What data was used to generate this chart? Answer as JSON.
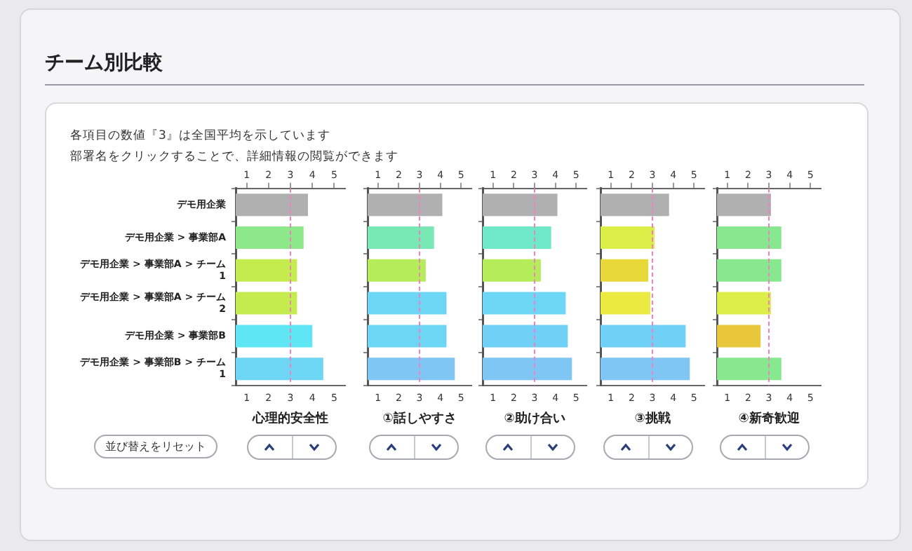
{
  "chart_data": [
    {
      "type": "bar",
      "orientation": "horizontal",
      "title": "チーム別比較",
      "annotations": [
        "各項目の数値『3』は全国平均を示しています",
        "部署名をクリックすることで、詳細情報の閲覧ができます",
        "並び替えをリセット"
      ],
      "xlabel": "心理的安全性",
      "categories": [
        "デモ用企業",
        "デモ用企業 > 事業部A",
        "デモ用企業 > 事業部A > チーム 1",
        "デモ用企業 > 事業部A > チーム 2",
        "デモ用企業 > 事業部B",
        "デモ用企業 > 事業部B > チーム 1"
      ],
      "values": [
        3.8,
        3.6,
        3.3,
        3.3,
        4.0,
        4.5
      ],
      "colors": [
        "#b0b0b0",
        "#8de88a",
        "#c5ec4f",
        "#c5ec4f",
        "#5fe6f5",
        "#6dd6f5"
      ],
      "xlim": [
        0.5,
        5.5
      ],
      "xticks": [
        1,
        2,
        3,
        4,
        5
      ],
      "x2lim": [
        0.5,
        5.5
      ],
      "x2ticks": [
        1,
        2,
        3,
        4,
        5
      ],
      "ref_lines": [
        {
          "axis": "x",
          "value": 3,
          "color": "#f080c0",
          "line_style": "dashed"
        }
      ],
      "grid": false,
      "legend": false
    },
    {
      "type": "bar",
      "orientation": "horizontal",
      "xlabel": "①話しやすさ",
      "categories": [
        null,
        null,
        null,
        null,
        null,
        null
      ],
      "values": [
        4.1,
        3.7,
        3.3,
        4.3,
        4.3,
        4.7
      ],
      "colors": [
        "#b0b0b0",
        "#78e8b4",
        "#b5ec5a",
        "#6dd6f5",
        "#6dd6f5",
        "#80c6f5"
      ],
      "xlim": [
        0.5,
        5.5
      ],
      "xticks": [
        1,
        2,
        3,
        4,
        5
      ],
      "x2lim": [
        0.5,
        5.5
      ],
      "x2ticks": [
        1,
        2,
        3,
        4,
        5
      ],
      "ref_lines": [
        {
          "axis": "x",
          "value": 3,
          "color": "#f080c0",
          "line_style": "dashed"
        }
      ],
      "grid": false,
      "legend": false,
      "tick_labels": "x"
    },
    {
      "type": "bar",
      "orientation": "horizontal",
      "xlabel": "②助け合い",
      "categories": [
        null,
        null,
        null,
        null,
        null,
        null
      ],
      "values": [
        4.1,
        3.8,
        3.3,
        4.5,
        4.6,
        4.8
      ],
      "colors": [
        "#b0b0b0",
        "#6fe8c8",
        "#b5ec5a",
        "#6dd6f5",
        "#70d0f5",
        "#80c6f5"
      ],
      "xlim": [
        0.5,
        5.5
      ],
      "xticks": [
        1,
        2,
        3,
        4,
        5
      ],
      "x2lim": [
        0.5,
        5.5
      ],
      "x2ticks": [
        1,
        2,
        3,
        4,
        5
      ],
      "ref_lines": [
        {
          "axis": "x",
          "value": 3,
          "color": "#f080c0",
          "line_style": "dashed"
        }
      ],
      "grid": false,
      "legend": false,
      "tick_labels": "x"
    },
    {
      "type": "bar",
      "orientation": "horizontal",
      "xlabel": "③挑戦",
      "categories": [
        null,
        null,
        null,
        null,
        null,
        null
      ],
      "values": [
        3.8,
        3.1,
        2.8,
        2.9,
        4.6,
        4.8
      ],
      "colors": [
        "#b0b0b0",
        "#dcee48",
        "#e8d83a",
        "#eaea40",
        "#70d0f5",
        "#80c6f5"
      ],
      "xlim": [
        0.5,
        5.5
      ],
      "xticks": [
        1,
        2,
        3,
        4,
        5
      ],
      "x2lim": [
        0.5,
        5.5
      ],
      "x2ticks": [
        1,
        2,
        3,
        4,
        5
      ],
      "ref_lines": [
        {
          "axis": "x",
          "value": 3,
          "color": "#f080c0",
          "line_style": "dashed"
        }
      ],
      "grid": false,
      "legend": false,
      "tick_labels": "x"
    },
    {
      "type": "bar",
      "orientation": "horizontal",
      "xlabel": "④新奇歓迎",
      "categories": [
        null,
        null,
        null,
        null,
        null,
        null
      ],
      "values": [
        3.1,
        3.6,
        3.6,
        3.1,
        2.6,
        3.6
      ],
      "colors": [
        "#b0b0b0",
        "#88e890",
        "#88e890",
        "#dcee48",
        "#e8c83a",
        "#88e890"
      ],
      "xlim": [
        0.5,
        5.5
      ],
      "xticks": [
        1,
        2,
        3,
        4,
        5
      ],
      "x2lim": [
        0.5,
        5.5
      ],
      "x2ticks": [
        1,
        2,
        3,
        4,
        5
      ],
      "ref_lines": [
        {
          "axis": "x",
          "value": 3,
          "color": "#f080c0",
          "line_style": "dashed"
        }
      ],
      "grid": false,
      "legend": false,
      "tick_labels": "x"
    }
  ]
}
